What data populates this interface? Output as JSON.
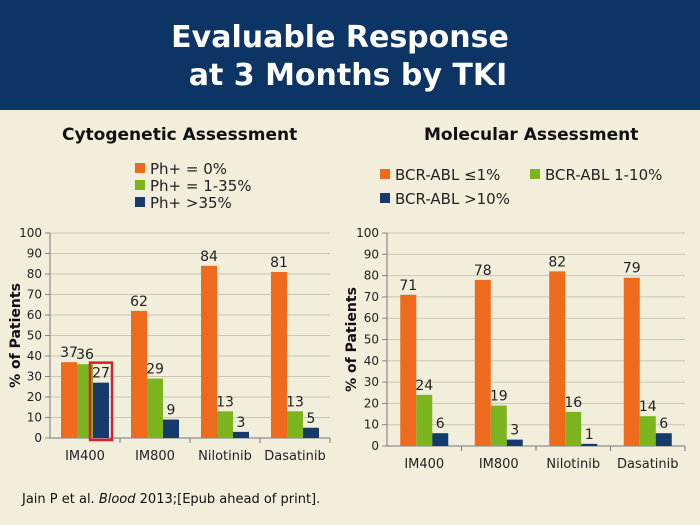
{
  "title": {
    "line1": "Evaluable Response",
    "line2": "at 3 Months by TKI"
  },
  "colors": {
    "header_bg": "#0c3465",
    "background": "#f1eedc",
    "orange": "#ee6a1c",
    "green": "#7cb41f",
    "navy": "#173a6b",
    "highlight": "#d9202a"
  },
  "cytogenetic": {
    "heading": "Cytogenetic Assessment",
    "legend": [
      {
        "label": "Ph+ = 0%",
        "color": "#ee6a1c"
      },
      {
        "label": "Ph+ = 1-35%",
        "color": "#7cb41f"
      },
      {
        "label": "Ph+ >35%",
        "color": "#173a6b"
      }
    ]
  },
  "molecular": {
    "heading": "Molecular Assessment",
    "legend": [
      {
        "label": "BCR-ABL ≤1%",
        "color": "#ee6a1c"
      },
      {
        "label": "BCR-ABL 1-10%",
        "color": "#7cb41f"
      },
      {
        "label": "BCR-ABL >10%",
        "color": "#173a6b"
      }
    ]
  },
  "chart_data": [
    {
      "type": "bar",
      "title": "Cytogenetic Assessment",
      "ylabel": "% of Patients",
      "ylim": [
        0,
        100
      ],
      "yticks": [
        0,
        10,
        20,
        30,
        40,
        50,
        60,
        70,
        80,
        90,
        100
      ],
      "grid": true,
      "categories": [
        "IM400",
        "IM800",
        "Nilotinib",
        "Dasatinib"
      ],
      "series": [
        {
          "name": "Ph+ = 0%",
          "color": "#ee6a1c",
          "values": [
            37,
            62,
            84,
            81
          ]
        },
        {
          "name": "Ph+ = 1-35%",
          "color": "#7cb41f",
          "values": [
            36,
            29,
            13,
            13
          ]
        },
        {
          "name": "Ph+ >35%",
          "color": "#173a6b",
          "values": [
            27,
            9,
            3,
            5
          ]
        }
      ],
      "highlight": {
        "series": 2,
        "category": 0,
        "color": "#d9202a"
      }
    },
    {
      "type": "bar",
      "title": "Molecular Assessment",
      "ylabel": "% of Patients",
      "ylim": [
        0,
        100
      ],
      "yticks": [
        0,
        10,
        20,
        30,
        40,
        50,
        60,
        70,
        80,
        90,
        100
      ],
      "grid": true,
      "categories": [
        "IM400",
        "IM800",
        "Nilotinib",
        "Dasatinib"
      ],
      "series": [
        {
          "name": "BCR-ABL ≤1%",
          "color": "#ee6a1c",
          "values": [
            71,
            78,
            82,
            79
          ]
        },
        {
          "name": "BCR-ABL 1-10%",
          "color": "#7cb41f",
          "values": [
            24,
            19,
            16,
            14
          ]
        },
        {
          "name": "BCR-ABL >10%",
          "color": "#173a6b",
          "values": [
            6,
            3,
            1,
            6
          ]
        }
      ]
    }
  ],
  "citation": {
    "prefix": "Jain P et al. ",
    "journal": "Blood",
    "suffix": " 2013;[Epub ahead of print]."
  }
}
